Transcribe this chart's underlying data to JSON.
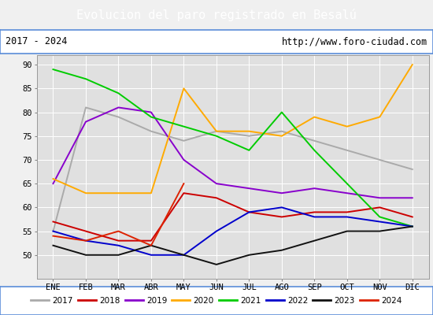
{
  "title": "Evolucion del paro registrado en Besalú",
  "subtitle_left": "2017 - 2024",
  "subtitle_right": "http://www.foro-ciudad.com",
  "title_bg_color": "#5b8dd9",
  "title_text_color": "#ffffff",
  "months": [
    "ENE",
    "FEB",
    "MAR",
    "ABR",
    "MAY",
    "JUN",
    "JUL",
    "AGO",
    "SEP",
    "OCT",
    "NOV",
    "DIC"
  ],
  "ylim": [
    45,
    92
  ],
  "yticks": [
    50,
    55,
    60,
    65,
    70,
    75,
    80,
    85,
    90
  ],
  "series": {
    "2017": {
      "color": "#aaaaaa",
      "data": [
        55,
        81,
        79,
        76,
        74,
        76,
        75,
        76,
        74,
        72,
        70,
        68
      ]
    },
    "2018": {
      "color": "#cc0000",
      "data": [
        57,
        55,
        53,
        53,
        63,
        62,
        59,
        58,
        59,
        59,
        60,
        58
      ]
    },
    "2019": {
      "color": "#8800cc",
      "data": [
        65,
        78,
        81,
        80,
        70,
        65,
        64,
        63,
        64,
        63,
        62,
        62
      ]
    },
    "2020": {
      "color": "#ffaa00",
      "data": [
        66,
        63,
        63,
        63,
        85,
        76,
        76,
        75,
        79,
        77,
        79,
        90
      ]
    },
    "2021": {
      "color": "#00cc00",
      "data": [
        89,
        87,
        84,
        79,
        77,
        75,
        72,
        80,
        72,
        65,
        58,
        56
      ]
    },
    "2022": {
      "color": "#0000cc",
      "data": [
        55,
        53,
        52,
        50,
        50,
        55,
        59,
        60,
        58,
        58,
        57,
        56
      ]
    },
    "2023": {
      "color": "#111111",
      "data": [
        52,
        50,
        50,
        52,
        50,
        48,
        50,
        51,
        53,
        55,
        55,
        56
      ]
    },
    "2024": {
      "color": "#dd2200",
      "data": [
        54,
        53,
        55,
        52,
        65,
        null,
        null,
        null,
        null,
        null,
        null,
        null
      ]
    }
  },
  "bg_color": "#f0f0f0",
  "plot_bg_color": "#e0e0e0",
  "border_color": "#5b8dd9",
  "fig_width": 5.5,
  "fig_height": 4.0,
  "fig_dpi": 100
}
